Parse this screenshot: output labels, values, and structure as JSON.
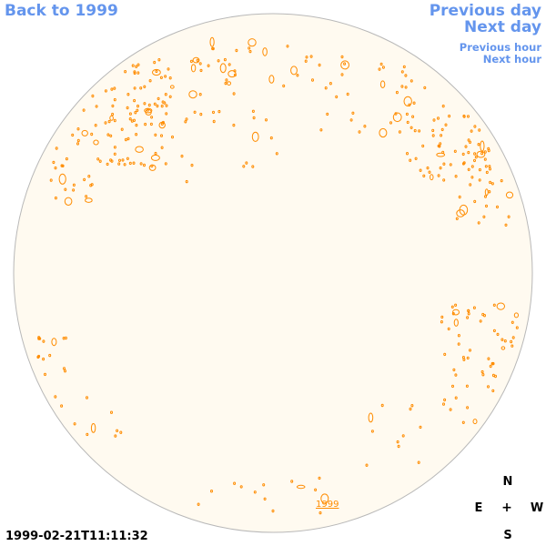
{
  "nav": {
    "back": "Back to 1999",
    "previous_day": "Previous day",
    "next_day": "Next day",
    "previous_hour": "Previous hour",
    "next_hour": "Next hour"
  },
  "image": {
    "timestamp": "1999-02-21T11:11:32",
    "year_label": "1999"
  },
  "compass": {
    "n": "N",
    "e": "E",
    "center": "+",
    "w": "W",
    "s": "S"
  },
  "colors": {
    "disk_fill": "#fffaf0",
    "disk_edge": "#b8b8b8",
    "contour": "#ff8c00",
    "nav_link": "#6495ed"
  }
}
